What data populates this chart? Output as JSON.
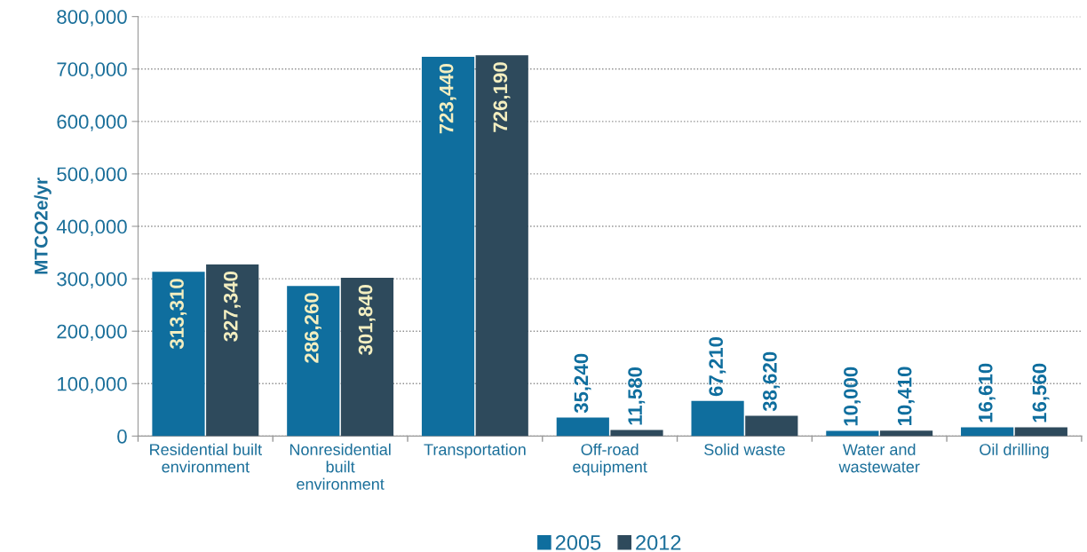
{
  "chart_data": {
    "type": "bar",
    "ylabel": "MTCO2e/yr",
    "categories": [
      "Residential built\nenvironment",
      "Nonresidential\nbuilt\nenvironment",
      "Transportation",
      "Off-road\nequipment",
      "Solid waste",
      "Water and\nwastewater",
      "Oil drilling"
    ],
    "series": [
      {
        "name": "2005",
        "color": "#0f6e9e",
        "values": [
          313310,
          286260,
          723440,
          35240,
          67210,
          10000,
          16610
        ],
        "value_labels": [
          "313,310",
          "286,260",
          "723,440",
          "35,240",
          "67,210",
          "10,000",
          "16,610"
        ]
      },
      {
        "name": "2012",
        "color": "#2e4a5c",
        "values": [
          327340,
          301840,
          726190,
          11580,
          38620,
          10410,
          16560
        ],
        "value_labels": [
          "327,340",
          "301,840",
          "726,190",
          "11,580",
          "38,620",
          "10,410",
          "16,560"
        ]
      }
    ],
    "ylim": [
      0,
      800000
    ],
    "yticks": [
      {
        "value": 0,
        "label": "0"
      },
      {
        "value": 100000,
        "label": "100,000"
      },
      {
        "value": 200000,
        "label": "200,000"
      },
      {
        "value": 300000,
        "label": "300,000"
      },
      {
        "value": 400000,
        "label": "400,000"
      },
      {
        "value": 500000,
        "label": "500,000"
      },
      {
        "value": 600000,
        "label": "600,000"
      },
      {
        "value": 700000,
        "label": "700,000"
      },
      {
        "value": 800000,
        "label": "800,000"
      }
    ],
    "grid": "y",
    "legend": "bottom"
  }
}
